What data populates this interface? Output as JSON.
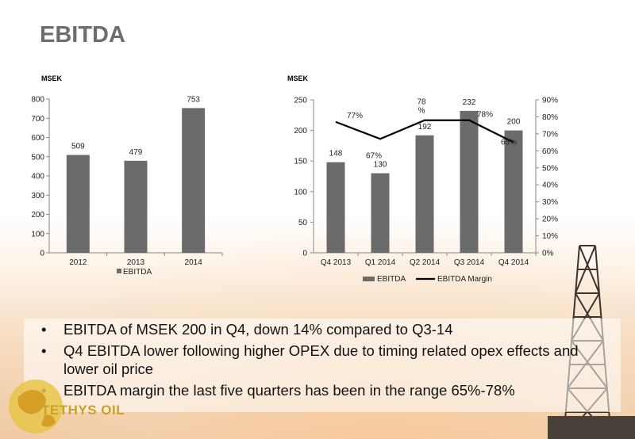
{
  "page": {
    "title": "EBITDA"
  },
  "colors": {
    "bar": "#6b6b6b",
    "line": "#000000",
    "title": "#6d6d6d",
    "logo": "#c9a227"
  },
  "chart_data": [
    {
      "type": "bar",
      "unit_label": "MSEK",
      "categories": [
        "2012",
        "2013",
        "2014"
      ],
      "series": [
        {
          "name": "EBITDA",
          "values": [
            509,
            479,
            753
          ]
        }
      ],
      "data_labels": [
        "509",
        "479",
        "753"
      ],
      "ylim": [
        0,
        800
      ],
      "yticks": [
        0,
        100,
        200,
        300,
        400,
        500,
        600,
        700,
        800
      ],
      "grid": false,
      "legend": "bottom"
    },
    {
      "type": "bar",
      "unit_label": "MSEK",
      "categories": [
        "Q4 2013",
        "Q1 2014",
        "Q2 2014",
        "Q3 2014",
        "Q4 2014"
      ],
      "series": [
        {
          "name": "EBITDA",
          "type": "bar",
          "axis": "left",
          "values": [
            148,
            130,
            192,
            232,
            200
          ]
        },
        {
          "name": "EBITDA Margin",
          "type": "line",
          "axis": "right",
          "values": [
            77,
            67,
            78,
            78,
            65
          ]
        }
      ],
      "bar_labels": [
        "148",
        "130",
        "192",
        "232",
        "200"
      ],
      "margin_labels": [
        "77%",
        "67%",
        "78\n%",
        "78%",
        "65%"
      ],
      "ylim": [
        0,
        250
      ],
      "yticks": [
        0,
        50,
        100,
        150,
        200,
        250
      ],
      "y2lim": [
        0,
        90
      ],
      "y2ticks": [
        "0%",
        "10%",
        "20%",
        "30%",
        "40%",
        "50%",
        "60%",
        "70%",
        "80%",
        "90%"
      ],
      "grid": false,
      "legend": "bottom"
    }
  ],
  "bullets": [
    "EBITDA of MSEK 200 in Q4, down 14% compared to Q3-14",
    "Q4 EBITDA lower following higher OPEX due to timing related opex effects and lower oil price",
    "EBITDA  margin the last five quarters has been in the range 65%-78%"
  ],
  "logo": {
    "text": "TETHYS OIL"
  }
}
